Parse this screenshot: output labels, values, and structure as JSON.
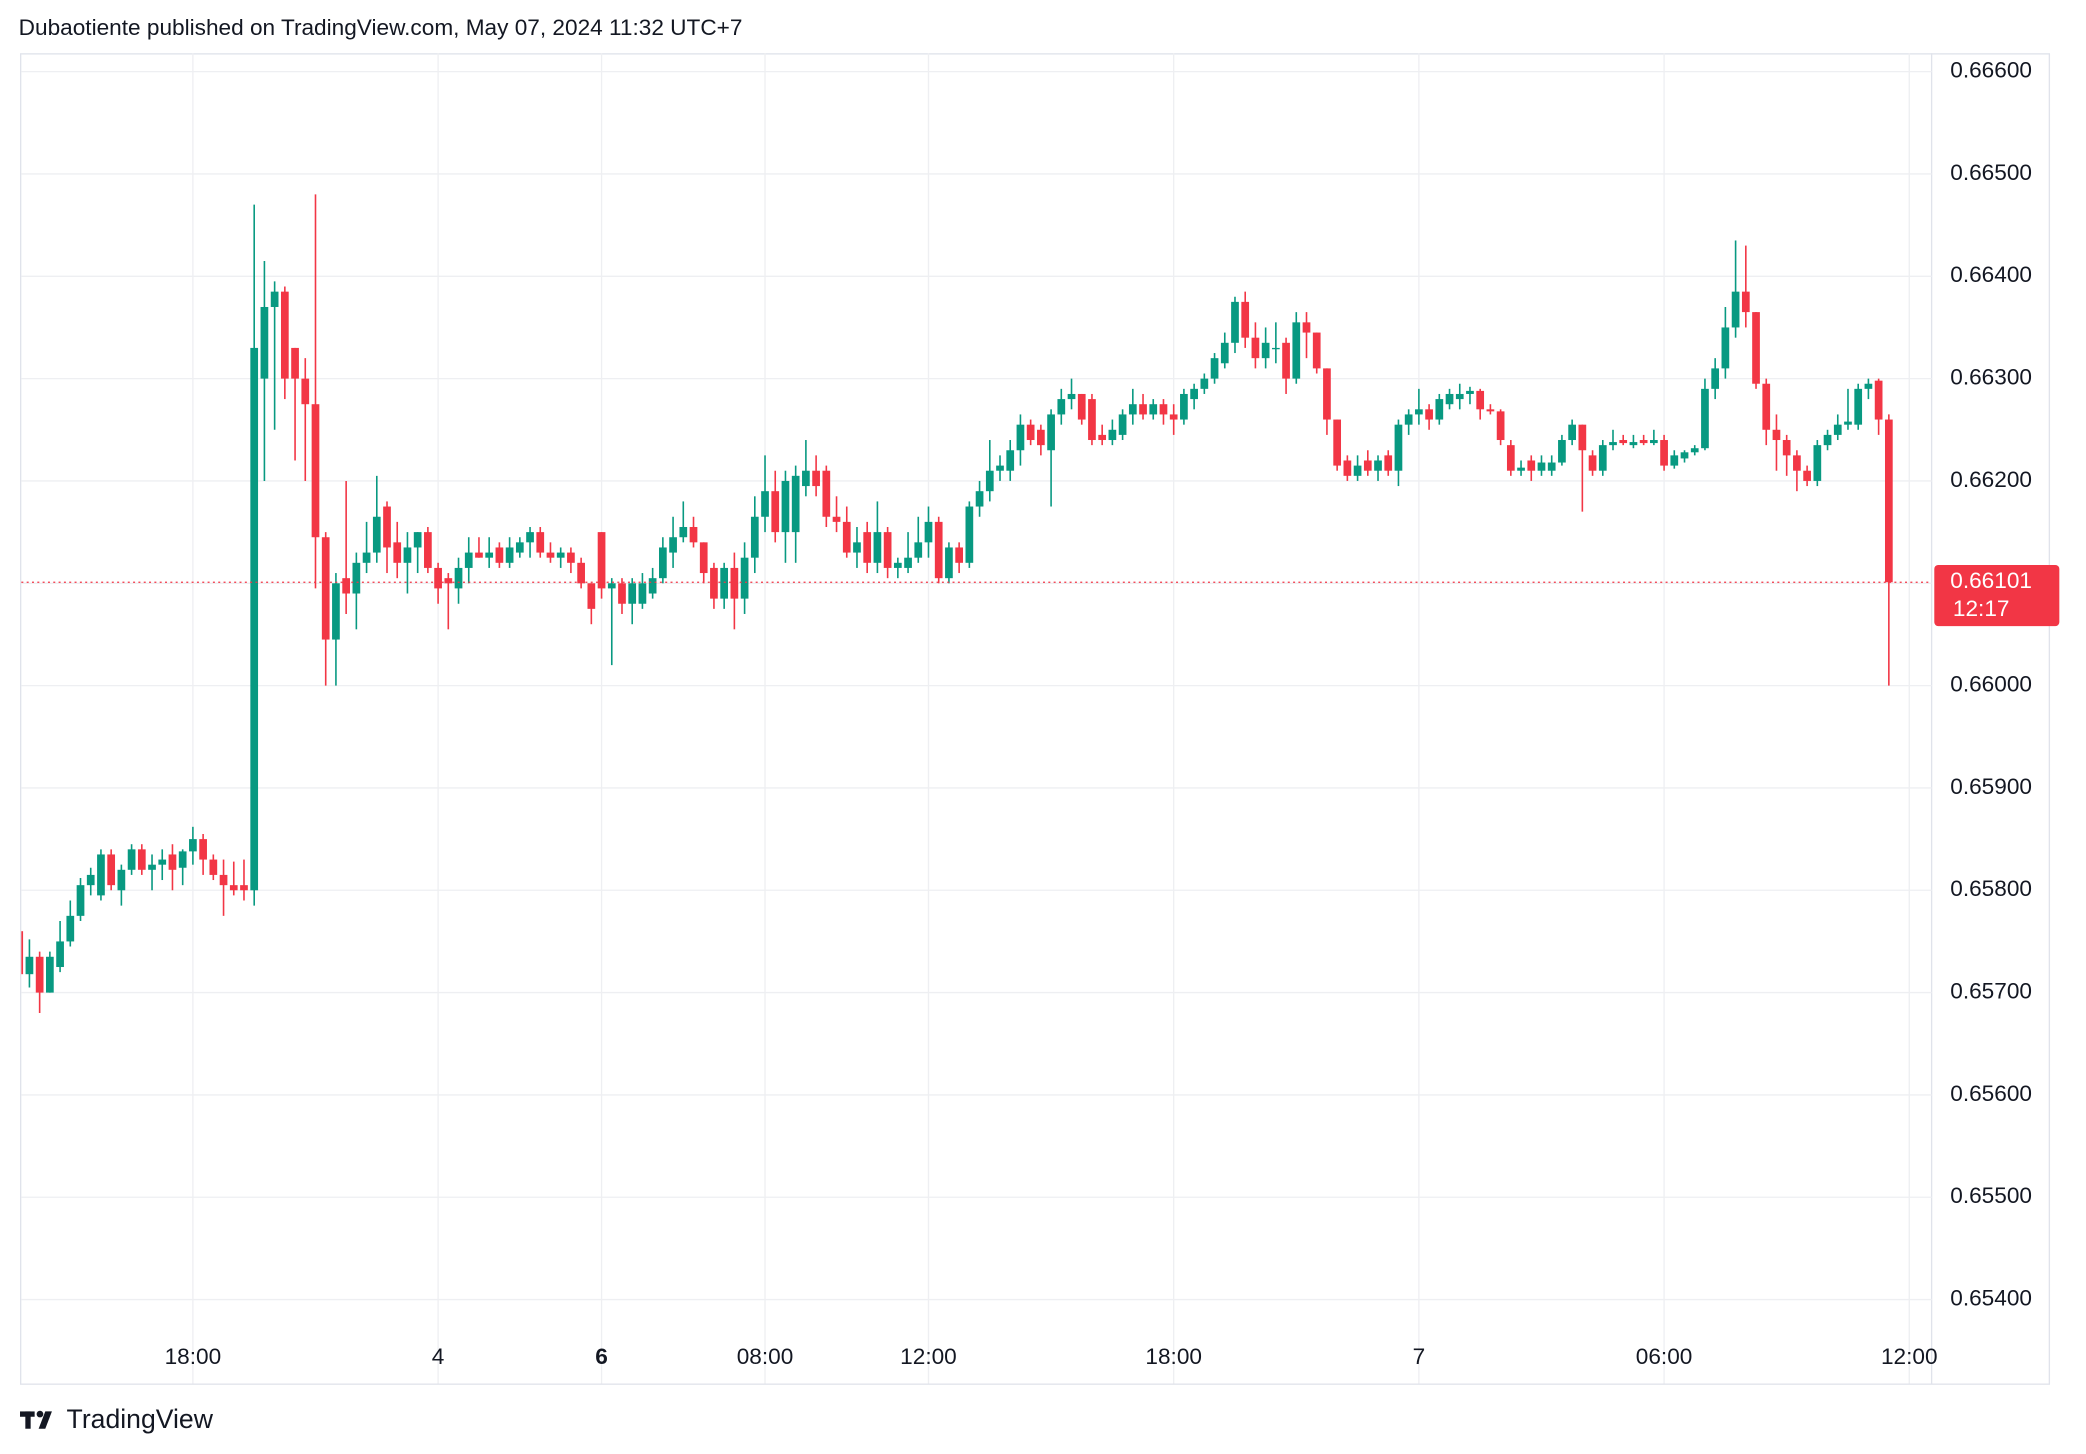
{
  "chart_data": {
    "type": "candlestick",
    "title": "Dubaotiente published on TradingView.com, May 07, 2024 11:32 UTC+7",
    "brand": "TradingView",
    "categories": [
      null,
      null,
      null,
      null,
      null,
      null,
      null,
      null,
      null,
      null,
      null,
      null,
      null,
      null,
      null,
      null,
      null,
      "18:00",
      null,
      null,
      null,
      null,
      null,
      null,
      null,
      null,
      null,
      null,
      null,
      null,
      null,
      null,
      null,
      null,
      null,
      null,
      null,
      null,
      null,
      null,
      null,
      "4",
      null,
      null,
      null,
      null,
      null,
      null,
      null,
      null,
      null,
      null,
      null,
      null,
      null,
      null,
      null,
      "6",
      null,
      null,
      null,
      null,
      null,
      null,
      null,
      null,
      null,
      null,
      null,
      null,
      null,
      null,
      null,
      "08:00",
      null,
      null,
      null,
      null,
      null,
      null,
      null,
      null,
      null,
      null,
      null,
      null,
      null,
      null,
      null,
      "12:00",
      null,
      null,
      null,
      null,
      null,
      null,
      null,
      null,
      null,
      null,
      null,
      null,
      null,
      null,
      null,
      null,
      null,
      null,
      null,
      null,
      null,
      null,
      null,
      "18:00",
      null,
      null,
      null,
      null,
      null,
      null,
      null,
      null,
      null,
      null,
      null,
      null,
      null,
      null,
      null,
      null,
      null,
      null,
      null,
      null,
      null,
      null,
      null,
      "7",
      null,
      null,
      null,
      null,
      null,
      null,
      null,
      null,
      null,
      null,
      null,
      null,
      null,
      null,
      null,
      null,
      null,
      null,
      null,
      null,
      null,
      null,
      null,
      "06:00",
      null,
      null,
      null,
      null,
      null,
      null,
      null,
      null,
      null,
      null,
      null,
      null,
      null,
      null,
      null,
      null,
      null,
      null,
      null,
      null,
      null,
      null,
      null,
      "12:00"
    ],
    "open": [
      0.6576,
      0.65718,
      0.65735,
      0.657,
      0.65725,
      0.6575,
      0.65775,
      0.65805,
      0.65795,
      0.65835,
      0.658,
      0.6582,
      0.6584,
      0.6582,
      0.65825,
      0.65835,
      0.65822,
      0.65838,
      0.6585,
      0.6583,
      0.65815,
      0.65805,
      0.65805,
      0.658,
      0.663,
      0.6637,
      0.66385,
      0.6633,
      0.663,
      0.66275,
      0.66145,
      0.66045,
      0.66105,
      0.6609,
      0.6612,
      0.6613,
      0.66175,
      0.6614,
      0.6612,
      0.66135,
      0.6615,
      0.66115,
      0.66105,
      0.66095,
      0.66115,
      0.6613,
      0.66125,
      0.66135,
      0.6612,
      0.6613,
      0.6614,
      0.6615,
      0.6613,
      0.66125,
      0.6613,
      0.6612,
      0.661,
      0.6615,
      0.66095,
      0.661,
      0.6608,
      0.6608,
      0.6609,
      0.66105,
      0.6613,
      0.66145,
      0.66155,
      0.6614,
      0.66115,
      0.66085,
      0.66115,
      0.66085,
      0.66125,
      0.66165,
      0.6619,
      0.6615,
      0.6615,
      0.66195,
      0.6621,
      0.6621,
      0.66165,
      0.6616,
      0.6613,
      0.6615,
      0.6612,
      0.6615,
      0.66115,
      0.66115,
      0.66125,
      0.6614,
      0.6616,
      0.66105,
      0.66135,
      0.6612,
      0.66175,
      0.6619,
      0.6621,
      0.6621,
      0.6623,
      0.66255,
      0.6625,
      0.6623,
      0.66265,
      0.6628,
      0.66285,
      0.6628,
      0.66245,
      0.6624,
      0.66245,
      0.66265,
      0.66275,
      0.66265,
      0.66275,
      0.66265,
      0.6626,
      0.6628,
      0.6629,
      0.663,
      0.66315,
      0.66335,
      0.66375,
      0.6634,
      0.6632,
      0.6633,
      0.66335,
      0.663,
      0.66355,
      0.66345,
      0.6631,
      0.6626,
      0.6622,
      0.66205,
      0.6622,
      0.6621,
      0.66225,
      0.6621,
      0.66255,
      0.66265,
      0.6627,
      0.6626,
      0.66275,
      0.6628,
      0.66285,
      0.66288,
      0.6627,
      0.66268,
      0.66235,
      0.6621,
      0.6622,
      0.6621,
      0.6621,
      0.66218,
      0.6624,
      0.66255,
      0.66225,
      0.6621,
      0.66235,
      0.6624,
      0.66235,
      0.6624,
      0.66237,
      0.6624,
      0.66215,
      0.66222,
      0.66228,
      0.66232,
      0.6629,
      0.6631,
      0.6635,
      0.66385,
      0.66365,
      0.66295,
      0.6625,
      0.6624,
      0.66225,
      0.6621,
      0.662,
      0.66235,
      0.66245,
      0.66255,
      0.66255,
      0.6629,
      0.66298,
      0.6626,
      null,
      null
    ],
    "high": [
      0.65762,
      0.65752,
      0.6574,
      0.6574,
      0.6577,
      0.6579,
      0.65812,
      0.65822,
      0.6584,
      0.6584,
      0.65825,
      0.65845,
      0.65845,
      0.65835,
      0.6584,
      0.65845,
      0.6584,
      0.65862,
      0.65855,
      0.65835,
      0.6583,
      0.65828,
      0.6583,
      0.6647,
      0.66415,
      0.66395,
      0.6639,
      0.6633,
      0.6632,
      0.6648,
      0.6615,
      0.6611,
      0.662,
      0.6613,
      0.6616,
      0.66205,
      0.6618,
      0.6616,
      0.6615,
      0.6615,
      0.66155,
      0.6612,
      0.6611,
      0.66125,
      0.66145,
      0.66145,
      0.66145,
      0.6614,
      0.66145,
      0.66145,
      0.66155,
      0.66155,
      0.6614,
      0.66135,
      0.66135,
      0.66125,
      0.661,
      0.6615,
      0.66105,
      0.66105,
      0.66105,
      0.6611,
      0.66115,
      0.66145,
      0.66165,
      0.6618,
      0.66165,
      0.6614,
      0.6612,
      0.6612,
      0.6613,
      0.6614,
      0.66185,
      0.66225,
      0.6621,
      0.6621,
      0.66215,
      0.6624,
      0.66225,
      0.66215,
      0.66185,
      0.66175,
      0.66155,
      0.6616,
      0.6618,
      0.66155,
      0.66125,
      0.6615,
      0.66165,
      0.66175,
      0.66165,
      0.6614,
      0.6614,
      0.6618,
      0.662,
      0.6624,
      0.66225,
      0.6624,
      0.66265,
      0.6626,
      0.66255,
      0.6627,
      0.6629,
      0.663,
      0.66285,
      0.66285,
      0.66255,
      0.6626,
      0.6627,
      0.6629,
      0.66285,
      0.6628,
      0.6628,
      0.66275,
      0.6629,
      0.66295,
      0.66305,
      0.66325,
      0.66345,
      0.6638,
      0.66385,
      0.66355,
      0.6635,
      0.66355,
      0.6634,
      0.66365,
      0.66365,
      0.66345,
      0.6631,
      0.6626,
      0.66225,
      0.66225,
      0.6623,
      0.66225,
      0.6623,
      0.6626,
      0.6627,
      0.6629,
      0.66275,
      0.66285,
      0.6629,
      0.66295,
      0.66292,
      0.6629,
      0.66275,
      0.6627,
      0.6624,
      0.6622,
      0.66225,
      0.66225,
      0.66225,
      0.66245,
      0.6626,
      0.66255,
      0.6623,
      0.6624,
      0.6625,
      0.66245,
      0.66245,
      0.66245,
      0.6625,
      0.66245,
      0.6623,
      0.6623,
      0.66235,
      0.663,
      0.6632,
      0.6637,
      0.66435,
      0.6643,
      0.66365,
      0.663,
      0.66265,
      0.66245,
      0.6623,
      0.66215,
      0.6624,
      0.6625,
      0.66265,
      0.6629,
      0.66295,
      0.663,
      0.663,
      0.66265,
      null,
      null
    ],
    "low": [
      0.65705,
      0.65705,
      0.6568,
      0.657,
      0.6572,
      0.65745,
      0.6577,
      0.65795,
      0.6579,
      0.658,
      0.65785,
      0.65815,
      0.65815,
      0.658,
      0.6581,
      0.658,
      0.65805,
      0.65825,
      0.65815,
      0.6581,
      0.65775,
      0.65795,
      0.6579,
      0.65785,
      0.662,
      0.6625,
      0.6628,
      0.6622,
      0.662,
      0.66095,
      0.66,
      0.66,
      0.6607,
      0.66055,
      0.6611,
      0.6612,
      0.6611,
      0.66105,
      0.6609,
      0.6611,
      0.6611,
      0.6608,
      0.66055,
      0.6608,
      0.661,
      0.66125,
      0.66115,
      0.66115,
      0.66115,
      0.66125,
      0.66125,
      0.66125,
      0.6612,
      0.66115,
      0.6611,
      0.66095,
      0.6606,
      0.66085,
      0.6602,
      0.6607,
      0.6606,
      0.66075,
      0.66085,
      0.661,
      0.66115,
      0.6614,
      0.66135,
      0.661,
      0.66075,
      0.66075,
      0.66055,
      0.6607,
      0.6611,
      0.6615,
      0.6614,
      0.6612,
      0.6612,
      0.66185,
      0.66185,
      0.66155,
      0.6615,
      0.66125,
      0.66115,
      0.6611,
      0.6611,
      0.66105,
      0.66105,
      0.6611,
      0.6612,
      0.66125,
      0.661,
      0.661,
      0.6611,
      0.66115,
      0.66165,
      0.6618,
      0.662,
      0.662,
      0.66215,
      0.66235,
      0.66225,
      0.66175,
      0.66255,
      0.6627,
      0.66255,
      0.66235,
      0.66235,
      0.66235,
      0.6624,
      0.66255,
      0.6626,
      0.6626,
      0.66255,
      0.66245,
      0.66255,
      0.6627,
      0.66285,
      0.66295,
      0.6631,
      0.66325,
      0.6633,
      0.6631,
      0.6631,
      0.66315,
      0.66285,
      0.66295,
      0.6632,
      0.66305,
      0.66245,
      0.6621,
      0.662,
      0.662,
      0.66205,
      0.662,
      0.66205,
      0.66195,
      0.66245,
      0.66255,
      0.6625,
      0.66255,
      0.6627,
      0.6627,
      0.66275,
      0.6626,
      0.66265,
      0.66235,
      0.66205,
      0.66205,
      0.662,
      0.66205,
      0.66205,
      0.66215,
      0.66235,
      0.6617,
      0.66205,
      0.66205,
      0.6623,
      0.66235,
      0.66232,
      0.66235,
      0.66235,
      0.6621,
      0.66212,
      0.66218,
      0.66225,
      0.6623,
      0.6628,
      0.663,
      0.6634,
      0.6635,
      0.6629,
      0.66235,
      0.6621,
      0.66205,
      0.6619,
      0.66195,
      0.66195,
      0.6623,
      0.6624,
      0.6625,
      0.6625,
      0.6628,
      0.66245,
      0.66,
      null,
      null
    ],
    "close": [
      0.65718,
      0.65735,
      0.657,
      0.65735,
      0.6575,
      0.65775,
      0.65805,
      0.65815,
      0.65835,
      0.65805,
      0.6582,
      0.6584,
      0.6582,
      0.65825,
      0.6583,
      0.6582,
      0.65838,
      0.6585,
      0.6583,
      0.65815,
      0.65805,
      0.658,
      0.658,
      0.6633,
      0.6637,
      0.66385,
      0.663,
      0.663,
      0.66275,
      0.66145,
      0.66045,
      0.661,
      0.6609,
      0.6612,
      0.6613,
      0.66165,
      0.66135,
      0.6612,
      0.66135,
      0.6615,
      0.66115,
      0.66095,
      0.661,
      0.66115,
      0.6613,
      0.66125,
      0.6613,
      0.6612,
      0.66135,
      0.6614,
      0.6615,
      0.6613,
      0.66125,
      0.6613,
      0.6612,
      0.661,
      0.66075,
      0.66095,
      0.661,
      0.6608,
      0.661,
      0.661,
      0.66105,
      0.66135,
      0.66145,
      0.66155,
      0.6614,
      0.6611,
      0.66085,
      0.66115,
      0.66085,
      0.66125,
      0.66165,
      0.6619,
      0.6615,
      0.662,
      0.66205,
      0.6621,
      0.66195,
      0.66165,
      0.6616,
      0.6613,
      0.6614,
      0.6612,
      0.6615,
      0.66115,
      0.6612,
      0.66125,
      0.6614,
      0.6616,
      0.66105,
      0.66135,
      0.6612,
      0.66175,
      0.6619,
      0.6621,
      0.66215,
      0.6623,
      0.66255,
      0.6624,
      0.66235,
      0.66265,
      0.6628,
      0.66285,
      0.6626,
      0.6624,
      0.6624,
      0.6625,
      0.66265,
      0.66275,
      0.66265,
      0.66275,
      0.66265,
      0.6626,
      0.66285,
      0.6629,
      0.663,
      0.6632,
      0.66335,
      0.66375,
      0.6634,
      0.6632,
      0.66335,
      0.6633,
      0.663,
      0.66355,
      0.66345,
      0.6631,
      0.6626,
      0.66215,
      0.66205,
      0.66215,
      0.6621,
      0.6622,
      0.6621,
      0.66255,
      0.66265,
      0.6627,
      0.6626,
      0.6628,
      0.66285,
      0.66285,
      0.66288,
      0.6627,
      0.66268,
      0.6624,
      0.6621,
      0.66213,
      0.6621,
      0.66218,
      0.66218,
      0.6624,
      0.66255,
      0.6623,
      0.6621,
      0.66235,
      0.66238,
      0.66237,
      0.66238,
      0.66237,
      0.6624,
      0.66215,
      0.66225,
      0.66228,
      0.66232,
      0.6629,
      0.6631,
      0.6635,
      0.66385,
      0.66365,
      0.66295,
      0.6625,
      0.6624,
      0.66225,
      0.6621,
      0.662,
      0.66235,
      0.66245,
      0.66255,
      0.66258,
      0.6629,
      0.66295,
      0.6626,
      0.66101,
      null,
      null
    ],
    "up_color": "#089981",
    "down_color": "#f23645",
    "ylim": [
      0.65318,
      0.66618
    ],
    "yticks": [
      {
        "value": 0.654,
        "label": "0.65400"
      },
      {
        "value": 0.655,
        "label": "0.65500"
      },
      {
        "value": 0.656,
        "label": "0.65600"
      },
      {
        "value": 0.657,
        "label": "0.65700"
      },
      {
        "value": 0.658,
        "label": "0.65800"
      },
      {
        "value": 0.659,
        "label": "0.65900"
      },
      {
        "value": 0.66,
        "label": "0.66000"
      },
      {
        "value": 0.661,
        "label": "0.66100"
      },
      {
        "value": 0.662,
        "label": "0.66200"
      },
      {
        "value": 0.663,
        "label": "0.66300"
      },
      {
        "value": 0.664,
        "label": "0.66400"
      },
      {
        "value": 0.665,
        "label": "0.66500"
      },
      {
        "value": 0.666,
        "label": "0.66600"
      }
    ],
    "last_price": 0.66101,
    "countdown": "12:17",
    "grid": true
  }
}
